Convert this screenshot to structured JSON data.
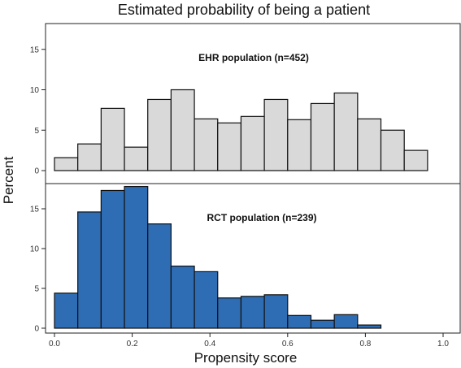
{
  "chart_data": {
    "type": "bar",
    "title": "Estimated probability of being a patient",
    "xlabel": "Propensity score",
    "ylabel": "Percent",
    "x_ticks": [
      "0.0",
      "0.2",
      "0.4",
      "0.6",
      "0.8",
      "1.0"
    ],
    "xlim": [
      0.0,
      1.0
    ],
    "bin_width": 0.06,
    "ylim": [
      0,
      18
    ],
    "y_ticks": [
      "0",
      "5",
      "10",
      "15"
    ],
    "panels": [
      {
        "label": "EHR population (n=452)",
        "color": "#d9d9d9",
        "bin_starts": [
          0.0,
          0.06,
          0.12,
          0.18,
          0.24,
          0.3,
          0.36,
          0.42,
          0.48,
          0.54,
          0.6,
          0.66,
          0.72,
          0.78,
          0.84,
          0.9
        ],
        "values": [
          1.6,
          3.3,
          7.7,
          2.9,
          8.8,
          10.0,
          6.4,
          5.9,
          6.7,
          8.8,
          6.3,
          8.3,
          9.6,
          6.4,
          5.0,
          2.5
        ]
      },
      {
        "label": "RCT population (n=239)",
        "color": "#2e6db4",
        "bin_starts": [
          0.0,
          0.06,
          0.12,
          0.18,
          0.24,
          0.3,
          0.36,
          0.42,
          0.48,
          0.54,
          0.6,
          0.66,
          0.72,
          0.78
        ],
        "values": [
          4.4,
          14.6,
          17.3,
          17.8,
          13.1,
          7.8,
          7.1,
          3.8,
          4.0,
          4.2,
          1.6,
          1.0,
          1.7,
          0.4
        ]
      }
    ]
  }
}
